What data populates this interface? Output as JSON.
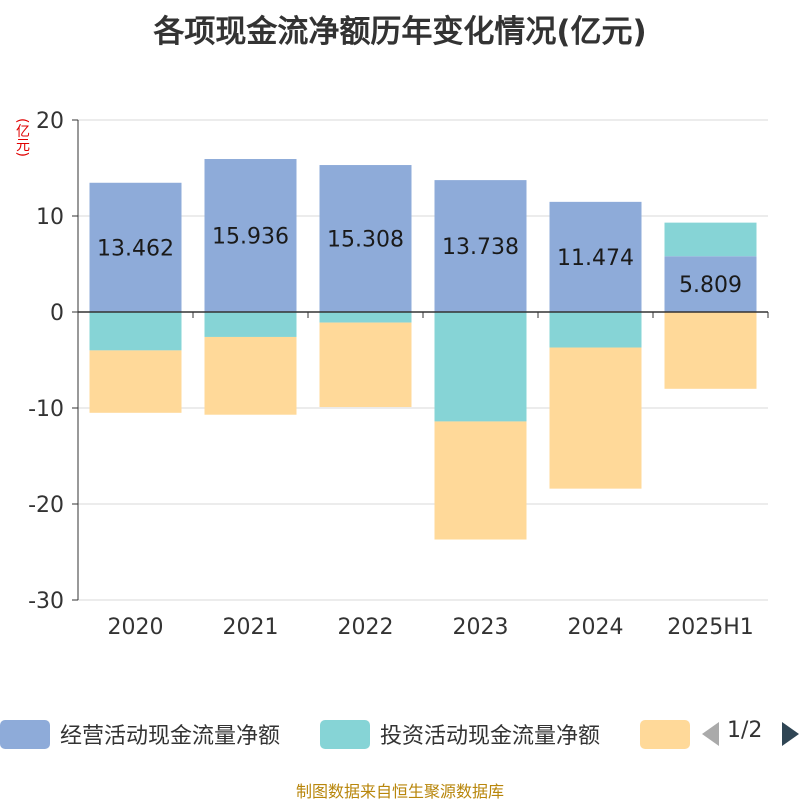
{
  "title": "各项现金流净额历年变化情况(亿元)",
  "unit": "(亿元)",
  "source": "制图数据来自恒生聚源数据库",
  "legend": {
    "items": [
      {
        "label": "经营活动现金流量净额",
        "color": "#8eabd9"
      },
      {
        "label": "投资活动现金流量净额",
        "color": "#86d4d6"
      },
      {
        "label": "",
        "color": "#ffd999"
      }
    ],
    "pager": "1/2"
  },
  "chart_data": {
    "type": "bar",
    "stacked": true,
    "categories": [
      "2020",
      "2021",
      "2022",
      "2023",
      "2024",
      "2025H1"
    ],
    "ylim": [
      -30,
      20
    ],
    "yticks": [
      20,
      10,
      0,
      -10,
      -20,
      -30
    ],
    "grid": true,
    "legend_position": "bottom",
    "series": [
      {
        "name": "经营活动现金流量净额",
        "color": "#8eabd9",
        "values": [
          13.462,
          15.936,
          15.308,
          13.738,
          11.474,
          5.809
        ],
        "labels": [
          "13.462",
          "15.936",
          "15.308",
          "13.738",
          "11.474",
          "5.809"
        ]
      },
      {
        "name": "投资活动现金流量净额",
        "color": "#86d4d6",
        "values": [
          -4.0,
          -2.6,
          -1.1,
          -11.4,
          -3.7,
          3.5
        ]
      },
      {
        "color": "#ffd999",
        "values": [
          -6.5,
          -8.1,
          -8.8,
          -12.3,
          -14.7,
          -8.0
        ]
      }
    ]
  }
}
